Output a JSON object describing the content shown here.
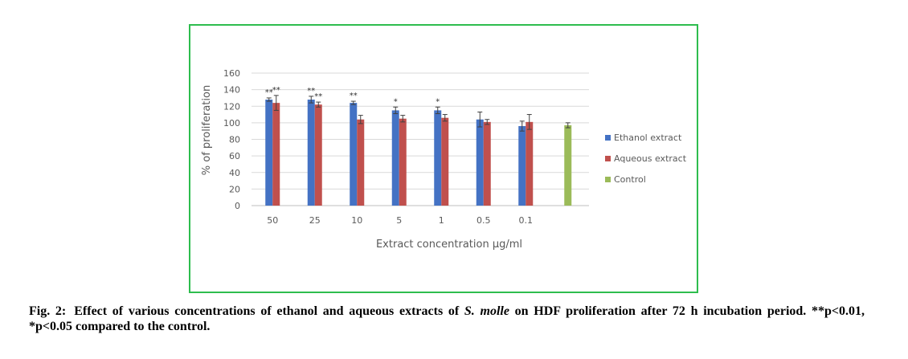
{
  "caption": {
    "label": "Fig. 2:",
    "text_before": "Effect of various concentrations of ethanol and aqueous extracts of ",
    "species": "S. molle",
    "text_after": " on HDF proliferation after 72 h incubation period. **p<0.01, *p<0.05 compared to the control."
  },
  "chart_data": {
    "type": "bar",
    "title": "",
    "xlabel": "Extract concentration µg/ml",
    "ylabel": "% of proliferation",
    "ylim": [
      0,
      160
    ],
    "yticks": [
      0,
      20,
      40,
      60,
      80,
      100,
      120,
      140,
      160
    ],
    "grid": true,
    "legend_position": "right",
    "categories": [
      "50",
      "25",
      "10",
      "5",
      "1",
      "0.5",
      "0.1",
      ""
    ],
    "series": [
      {
        "name": "Ethanol extract",
        "color": "#4472c4",
        "values": [
          128,
          128,
          124,
          115,
          115,
          104,
          96,
          null
        ],
        "errors": [
          2,
          4,
          2,
          4,
          4,
          9,
          6,
          null
        ],
        "significance": [
          "**",
          "**",
          "**",
          "*",
          "*",
          "",
          "",
          ""
        ]
      },
      {
        "name": "Aqueous extract",
        "color": "#c0504d",
        "values": [
          124,
          122,
          104,
          105,
          106,
          101,
          101,
          null
        ],
        "errors": [
          9,
          3,
          5,
          4,
          4,
          3,
          9,
          null
        ],
        "significance": [
          "**",
          "**",
          "",
          "",
          "",
          "",
          "",
          ""
        ]
      },
      {
        "name": "Control",
        "color": "#9bbb59",
        "values": [
          null,
          null,
          null,
          null,
          null,
          null,
          null,
          97
        ],
        "errors": [
          null,
          null,
          null,
          null,
          null,
          null,
          null,
          3
        ],
        "significance": [
          "",
          "",
          "",
          "",
          "",
          "",
          "",
          ""
        ]
      }
    ]
  }
}
